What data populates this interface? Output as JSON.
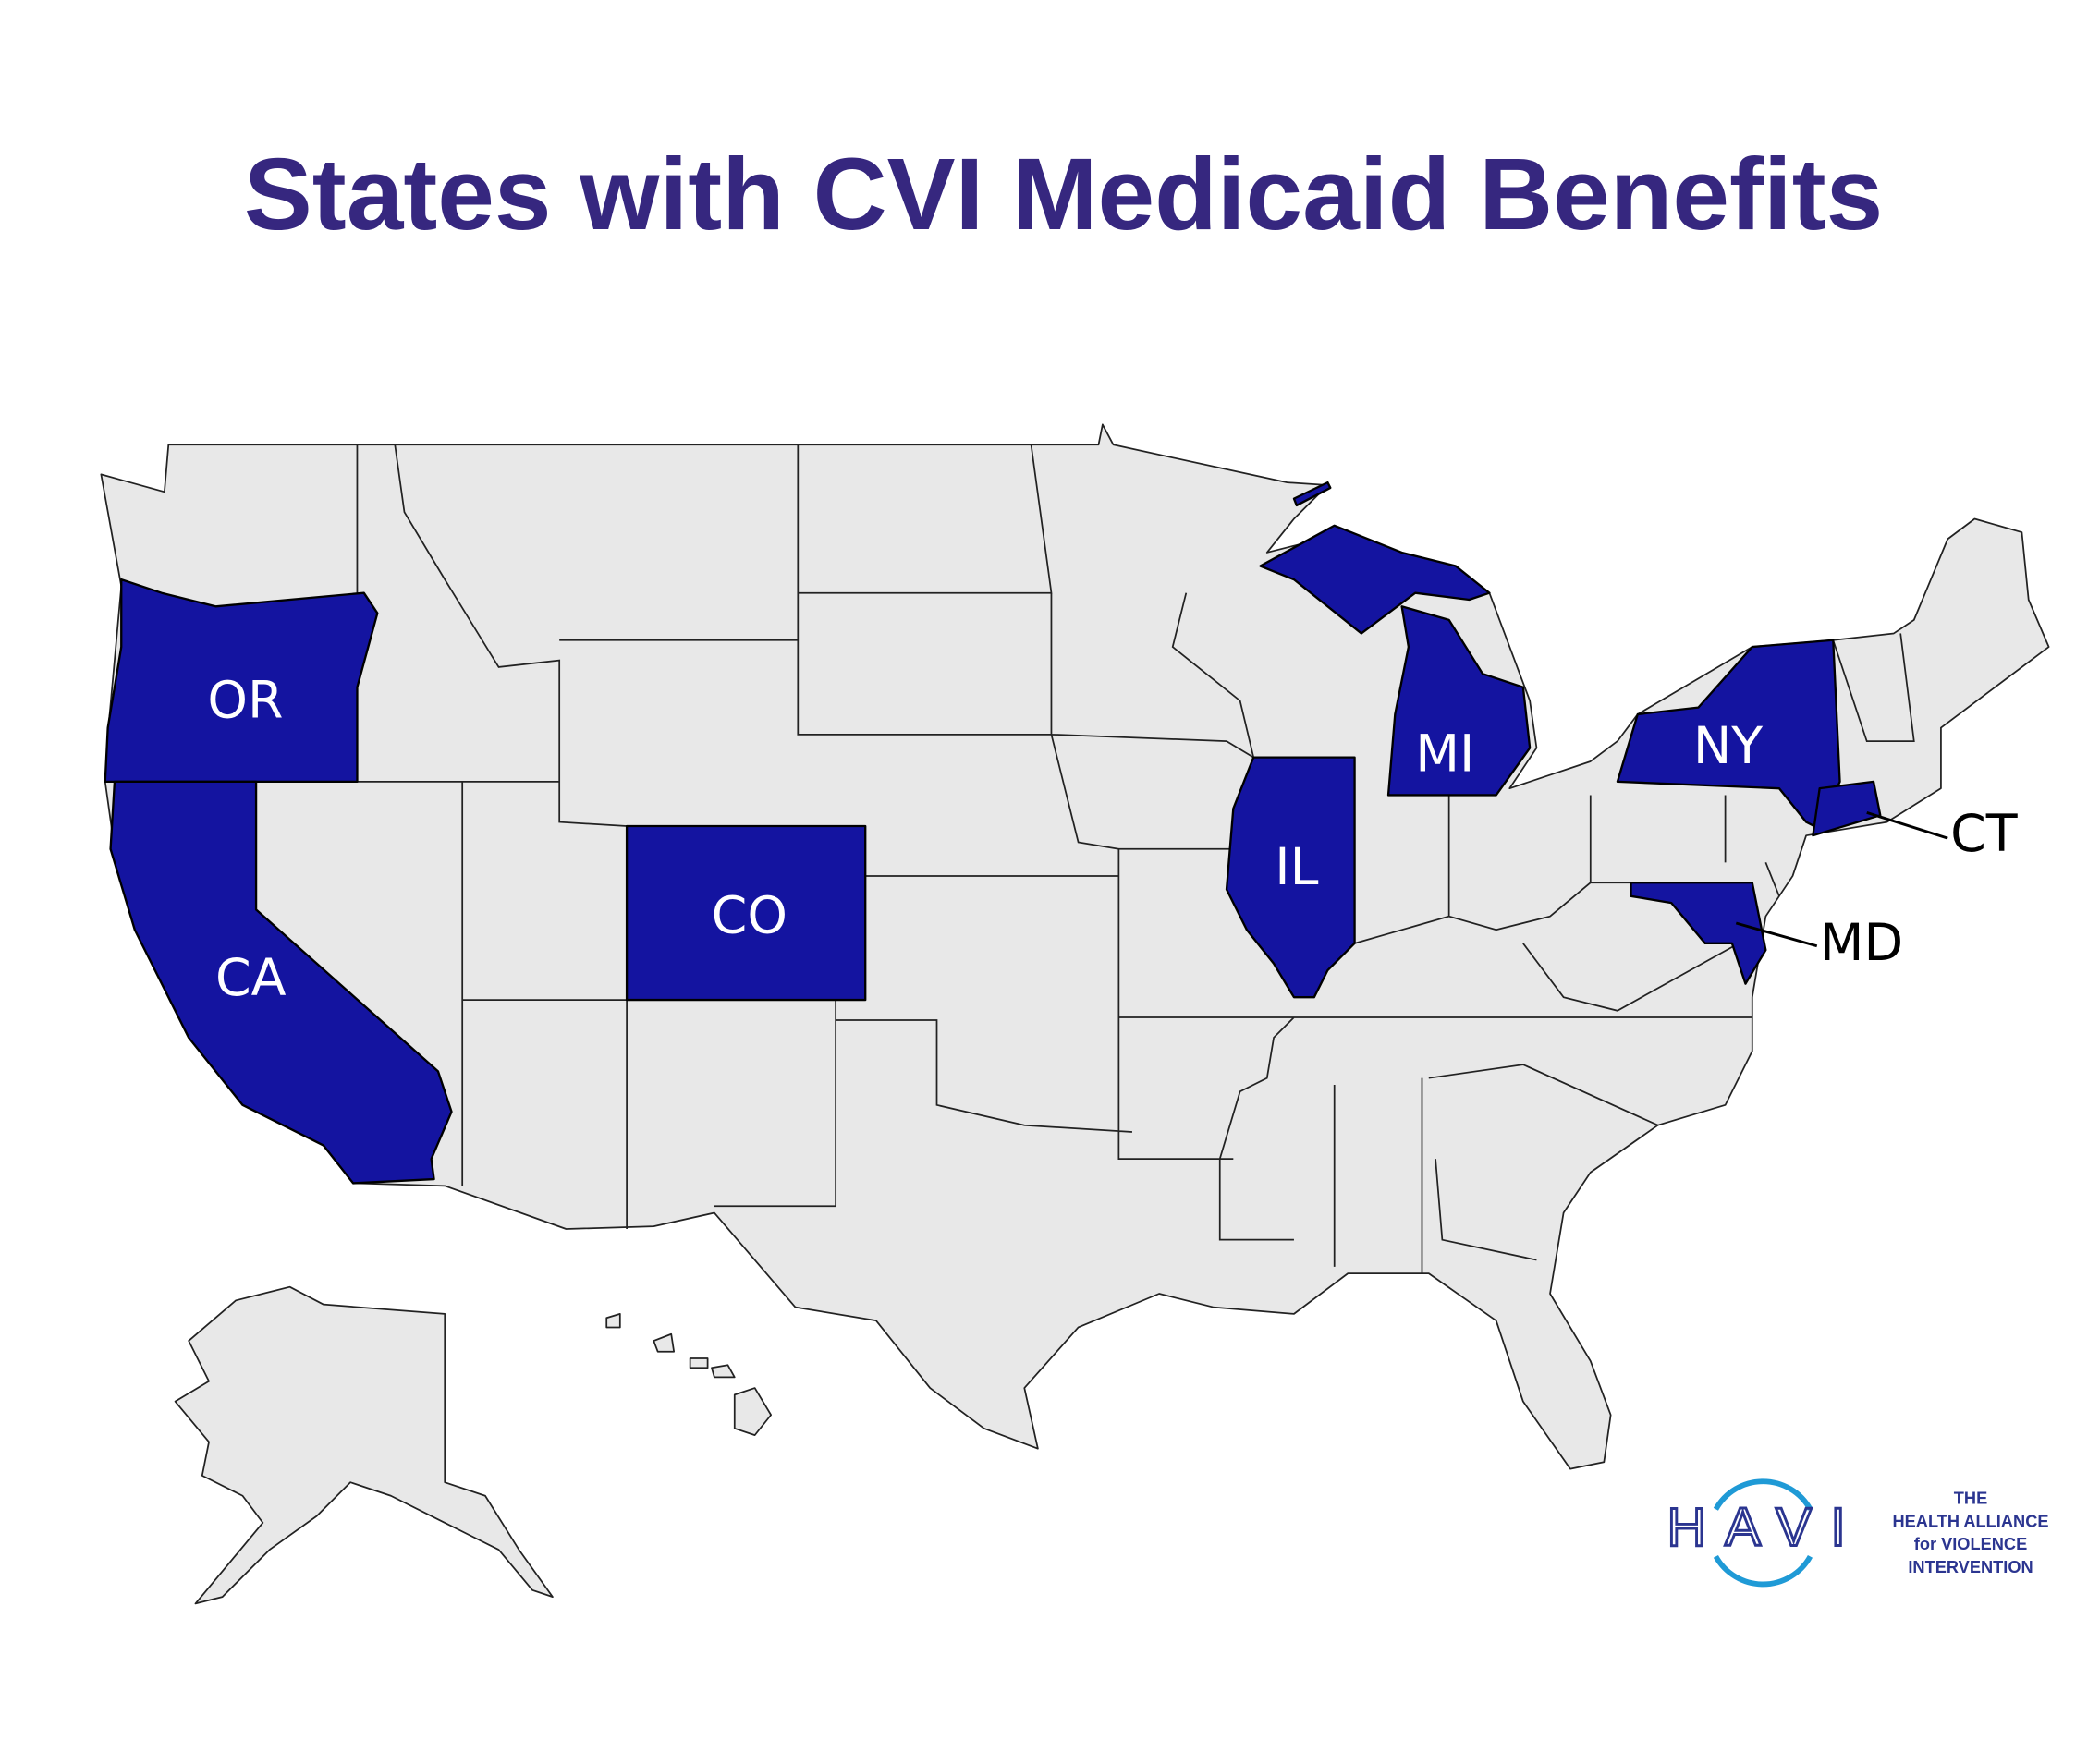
{
  "title": "States with CVI Medicaid Benefits",
  "states": [
    "OR",
    "CA",
    "CO",
    "IL",
    "MI",
    "NY",
    "CT",
    "MD"
  ],
  "logo": {
    "mark": "HAVI",
    "lines": [
      "THE",
      "HEALTH ALLIANCE",
      "for VIOLENCE",
      "INTERVENTION"
    ]
  }
}
